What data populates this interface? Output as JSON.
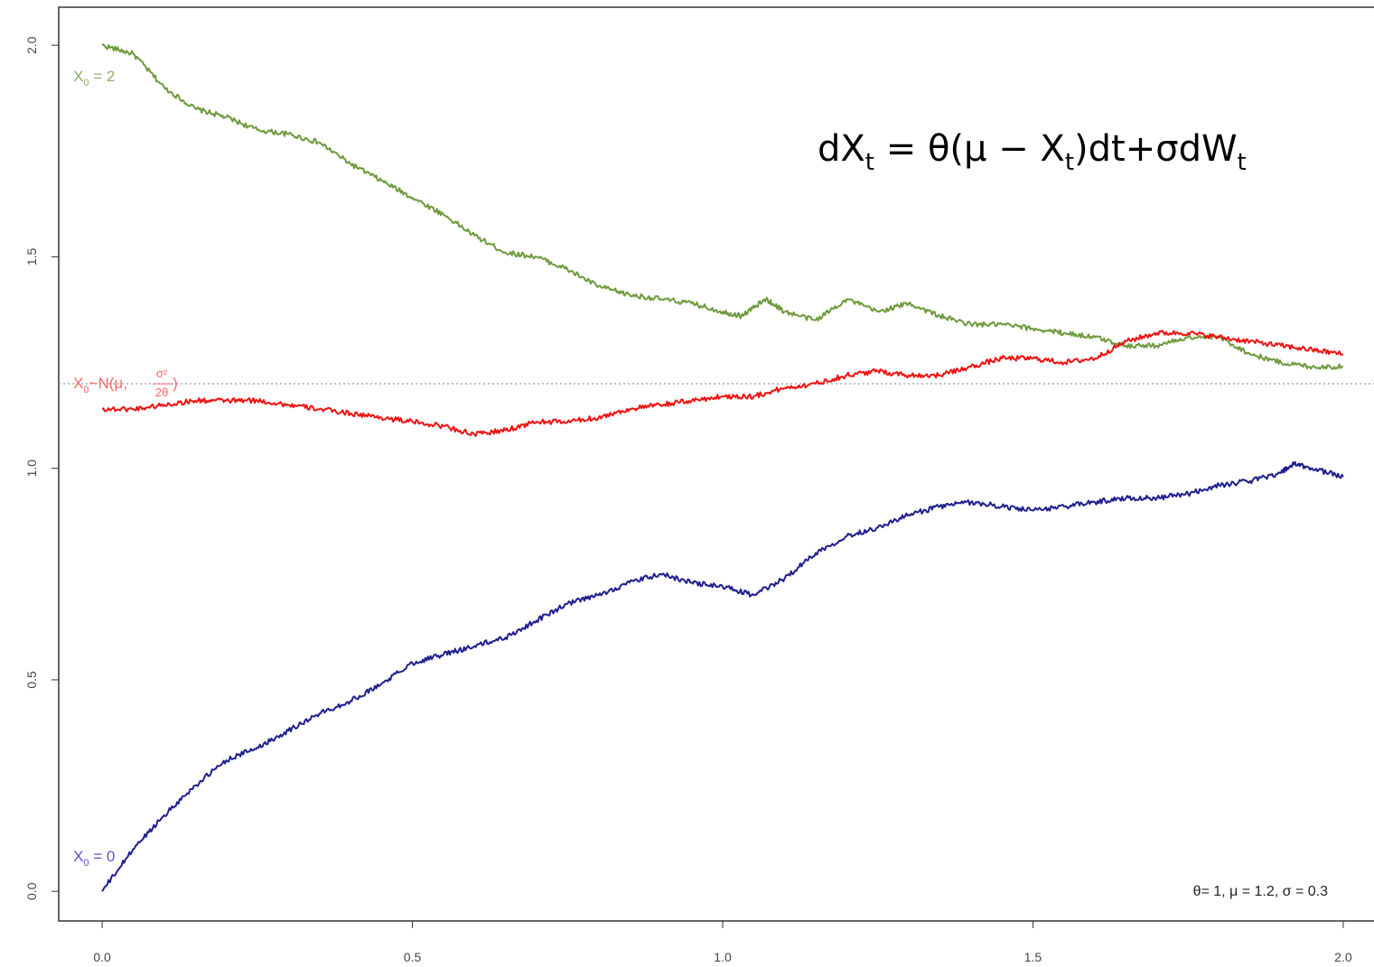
{
  "chart_data": {
    "type": "line",
    "equation": {
      "part1": "dX",
      "sub1": "t",
      "part2": " = θ(μ − X",
      "sub2": "t",
      "part3": ")dt+σdW",
      "sub3": "t"
    },
    "parameters_text": "θ= 1, μ = 1.2, σ = 0.3",
    "xlim": [
      -0.07,
      2.07
    ],
    "ylim": [
      -0.07,
      2.09
    ],
    "x_ticks": [
      "0.0",
      "0.5",
      "1.0",
      "1.5",
      "2.0"
    ],
    "y_ticks": [
      "0.0",
      "0.5",
      "1.0",
      "1.5",
      "2.0"
    ],
    "mean_line": {
      "value": 1.2,
      "color": "#999999",
      "style": "dotted"
    },
    "grid": false,
    "series": [
      {
        "label_prefix": "X",
        "label_sub": "0",
        "label_suffix": " = 2",
        "color": "#6e9a3c",
        "label_color": "#8caf6a",
        "points": [
          [
            0,
            2.0
          ],
          [
            0.05,
            1.98
          ],
          [
            0.1,
            1.9
          ],
          [
            0.15,
            1.85
          ],
          [
            0.2,
            1.83
          ],
          [
            0.25,
            1.8
          ],
          [
            0.3,
            1.79
          ],
          [
            0.35,
            1.77
          ],
          [
            0.4,
            1.72
          ],
          [
            0.45,
            1.68
          ],
          [
            0.5,
            1.64
          ],
          [
            0.55,
            1.6
          ],
          [
            0.6,
            1.55
          ],
          [
            0.65,
            1.51
          ],
          [
            0.7,
            1.5
          ],
          [
            0.75,
            1.47
          ],
          [
            0.8,
            1.43
          ],
          [
            0.85,
            1.41
          ],
          [
            0.9,
            1.4
          ],
          [
            0.95,
            1.39
          ],
          [
            1.0,
            1.37
          ],
          [
            1.03,
            1.36
          ],
          [
            1.07,
            1.4
          ],
          [
            1.1,
            1.37
          ],
          [
            1.15,
            1.35
          ],
          [
            1.2,
            1.4
          ],
          [
            1.25,
            1.37
          ],
          [
            1.3,
            1.39
          ],
          [
            1.35,
            1.36
          ],
          [
            1.4,
            1.34
          ],
          [
            1.45,
            1.34
          ],
          [
            1.5,
            1.33
          ],
          [
            1.55,
            1.32
          ],
          [
            1.6,
            1.31
          ],
          [
            1.65,
            1.29
          ],
          [
            1.7,
            1.29
          ],
          [
            1.75,
            1.31
          ],
          [
            1.8,
            1.31
          ],
          [
            1.85,
            1.27
          ],
          [
            1.9,
            1.25
          ],
          [
            1.95,
            1.24
          ],
          [
            2.0,
            1.24
          ]
        ]
      },
      {
        "label_prefix": "X",
        "label_sub": "0",
        "label_suffix": "~N(μ,",
        "label_frac_num": "σ²",
        "label_frac_den": "2θ",
        "label_close": ")",
        "color": "#ee1111",
        "label_color": "#ff6666",
        "points": [
          [
            0,
            1.14
          ],
          [
            0.05,
            1.14
          ],
          [
            0.1,
            1.15
          ],
          [
            0.15,
            1.16
          ],
          [
            0.2,
            1.16
          ],
          [
            0.25,
            1.16
          ],
          [
            0.3,
            1.15
          ],
          [
            0.35,
            1.14
          ],
          [
            0.4,
            1.13
          ],
          [
            0.45,
            1.12
          ],
          [
            0.5,
            1.11
          ],
          [
            0.55,
            1.1
          ],
          [
            0.6,
            1.08
          ],
          [
            0.65,
            1.09
          ],
          [
            0.7,
            1.11
          ],
          [
            0.75,
            1.11
          ],
          [
            0.8,
            1.12
          ],
          [
            0.85,
            1.14
          ],
          [
            0.9,
            1.15
          ],
          [
            0.95,
            1.16
          ],
          [
            1.0,
            1.17
          ],
          [
            1.05,
            1.17
          ],
          [
            1.1,
            1.19
          ],
          [
            1.15,
            1.2
          ],
          [
            1.2,
            1.22
          ],
          [
            1.25,
            1.23
          ],
          [
            1.3,
            1.22
          ],
          [
            1.35,
            1.22
          ],
          [
            1.4,
            1.24
          ],
          [
            1.45,
            1.26
          ],
          [
            1.5,
            1.26
          ],
          [
            1.55,
            1.25
          ],
          [
            1.6,
            1.26
          ],
          [
            1.65,
            1.3
          ],
          [
            1.7,
            1.32
          ],
          [
            1.75,
            1.32
          ],
          [
            1.8,
            1.31
          ],
          [
            1.85,
            1.3
          ],
          [
            1.9,
            1.29
          ],
          [
            1.95,
            1.28
          ],
          [
            2.0,
            1.27
          ]
        ]
      },
      {
        "label_prefix": "X",
        "label_sub": "0",
        "label_suffix": " = 0",
        "color": "#1f1f8f",
        "label_color": "#5555cc",
        "points": [
          [
            0,
            0.0
          ],
          [
            0.05,
            0.1
          ],
          [
            0.1,
            0.18
          ],
          [
            0.15,
            0.25
          ],
          [
            0.2,
            0.31
          ],
          [
            0.25,
            0.34
          ],
          [
            0.3,
            0.38
          ],
          [
            0.35,
            0.42
          ],
          [
            0.4,
            0.45
          ],
          [
            0.45,
            0.49
          ],
          [
            0.5,
            0.54
          ],
          [
            0.55,
            0.56
          ],
          [
            0.6,
            0.58
          ],
          [
            0.65,
            0.6
          ],
          [
            0.7,
            0.64
          ],
          [
            0.75,
            0.68
          ],
          [
            0.8,
            0.7
          ],
          [
            0.85,
            0.73
          ],
          [
            0.9,
            0.75
          ],
          [
            0.95,
            0.73
          ],
          [
            1.0,
            0.72
          ],
          [
            1.05,
            0.7
          ],
          [
            1.1,
            0.74
          ],
          [
            1.15,
            0.8
          ],
          [
            1.2,
            0.84
          ],
          [
            1.25,
            0.86
          ],
          [
            1.3,
            0.89
          ],
          [
            1.35,
            0.91
          ],
          [
            1.4,
            0.92
          ],
          [
            1.45,
            0.91
          ],
          [
            1.5,
            0.9
          ],
          [
            1.55,
            0.91
          ],
          [
            1.6,
            0.92
          ],
          [
            1.65,
            0.93
          ],
          [
            1.7,
            0.93
          ],
          [
            1.75,
            0.94
          ],
          [
            1.8,
            0.96
          ],
          [
            1.85,
            0.97
          ],
          [
            1.9,
            0.99
          ],
          [
            1.92,
            1.01
          ],
          [
            1.95,
            1.0
          ],
          [
            2.0,
            0.98
          ]
        ]
      }
    ]
  }
}
